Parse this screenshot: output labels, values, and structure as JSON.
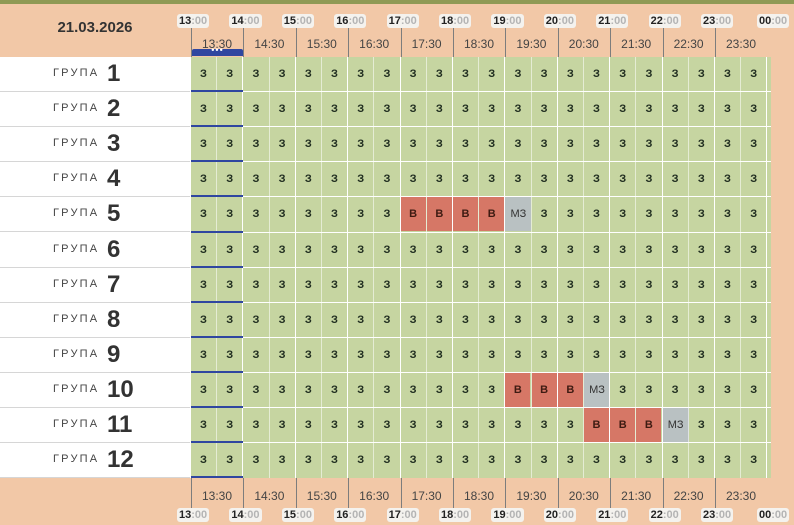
{
  "date": "21.03.2026",
  "hours": [
    "13",
    "14",
    "15",
    "16",
    "17",
    "18",
    "19",
    "20",
    "21",
    "22",
    "23",
    "00"
  ],
  "hour_minutes": ":00",
  "half_hours": [
    "13:30",
    "14:30",
    "15:30",
    "16:30",
    "17:30",
    "18:30",
    "19:30",
    "20:30",
    "21:30",
    "22:30",
    "23:30"
  ],
  "now_indicator": "•••",
  "group_word": "ГРУПА",
  "groups": [
    {
      "number": "1",
      "cells": [
        "З",
        "З",
        "З",
        "З",
        "З",
        "З",
        "З",
        "З",
        "З",
        "З",
        "З",
        "З",
        "З",
        "З",
        "З",
        "З",
        "З",
        "З",
        "З",
        "З",
        "З",
        "З"
      ]
    },
    {
      "number": "2",
      "cells": [
        "З",
        "З",
        "З",
        "З",
        "З",
        "З",
        "З",
        "З",
        "З",
        "З",
        "З",
        "З",
        "З",
        "З",
        "З",
        "З",
        "З",
        "З",
        "З",
        "З",
        "З",
        "З"
      ]
    },
    {
      "number": "3",
      "cells": [
        "З",
        "З",
        "З",
        "З",
        "З",
        "З",
        "З",
        "З",
        "З",
        "З",
        "З",
        "З",
        "З",
        "З",
        "З",
        "З",
        "З",
        "З",
        "З",
        "З",
        "З",
        "З"
      ]
    },
    {
      "number": "4",
      "cells": [
        "З",
        "З",
        "З",
        "З",
        "З",
        "З",
        "З",
        "З",
        "З",
        "З",
        "З",
        "З",
        "З",
        "З",
        "З",
        "З",
        "З",
        "З",
        "З",
        "З",
        "З",
        "З"
      ]
    },
    {
      "number": "5",
      "cells": [
        "З",
        "З",
        "З",
        "З",
        "З",
        "З",
        "З",
        "З",
        "В",
        "В",
        "В",
        "В",
        "МЗ",
        "З",
        "З",
        "З",
        "З",
        "З",
        "З",
        "З",
        "З",
        "З"
      ]
    },
    {
      "number": "6",
      "cells": [
        "З",
        "З",
        "З",
        "З",
        "З",
        "З",
        "З",
        "З",
        "З",
        "З",
        "З",
        "З",
        "З",
        "З",
        "З",
        "З",
        "З",
        "З",
        "З",
        "З",
        "З",
        "З"
      ]
    },
    {
      "number": "7",
      "cells": [
        "З",
        "З",
        "З",
        "З",
        "З",
        "З",
        "З",
        "З",
        "З",
        "З",
        "З",
        "З",
        "З",
        "З",
        "З",
        "З",
        "З",
        "З",
        "З",
        "З",
        "З",
        "З"
      ]
    },
    {
      "number": "8",
      "cells": [
        "З",
        "З",
        "З",
        "З",
        "З",
        "З",
        "З",
        "З",
        "З",
        "З",
        "З",
        "З",
        "З",
        "З",
        "З",
        "З",
        "З",
        "З",
        "З",
        "З",
        "З",
        "З"
      ]
    },
    {
      "number": "9",
      "cells": [
        "З",
        "З",
        "З",
        "З",
        "З",
        "З",
        "З",
        "З",
        "З",
        "З",
        "З",
        "З",
        "З",
        "З",
        "З",
        "З",
        "З",
        "З",
        "З",
        "З",
        "З",
        "З"
      ]
    },
    {
      "number": "10",
      "cells": [
        "З",
        "З",
        "З",
        "З",
        "З",
        "З",
        "З",
        "З",
        "З",
        "З",
        "З",
        "З",
        "В",
        "В",
        "В",
        "МЗ",
        "З",
        "З",
        "З",
        "З",
        "З",
        "З"
      ]
    },
    {
      "number": "11",
      "cells": [
        "З",
        "З",
        "З",
        "З",
        "З",
        "З",
        "З",
        "З",
        "З",
        "З",
        "З",
        "З",
        "З",
        "З",
        "З",
        "В",
        "В",
        "В",
        "МЗ",
        "З",
        "З",
        "З"
      ]
    },
    {
      "number": "12",
      "cells": [
        "З",
        "З",
        "З",
        "З",
        "З",
        "З",
        "З",
        "З",
        "З",
        "З",
        "З",
        "З",
        "З",
        "З",
        "З",
        "З",
        "З",
        "З",
        "З",
        "З",
        "З",
        "З"
      ]
    }
  ],
  "colors": {
    "background": "#f2c8a7",
    "free_cell": "#c6d5a1",
    "busy_cell": "#d67766",
    "mz_cell": "#b9c1c2",
    "now_marker": "#2f46a0"
  }
}
